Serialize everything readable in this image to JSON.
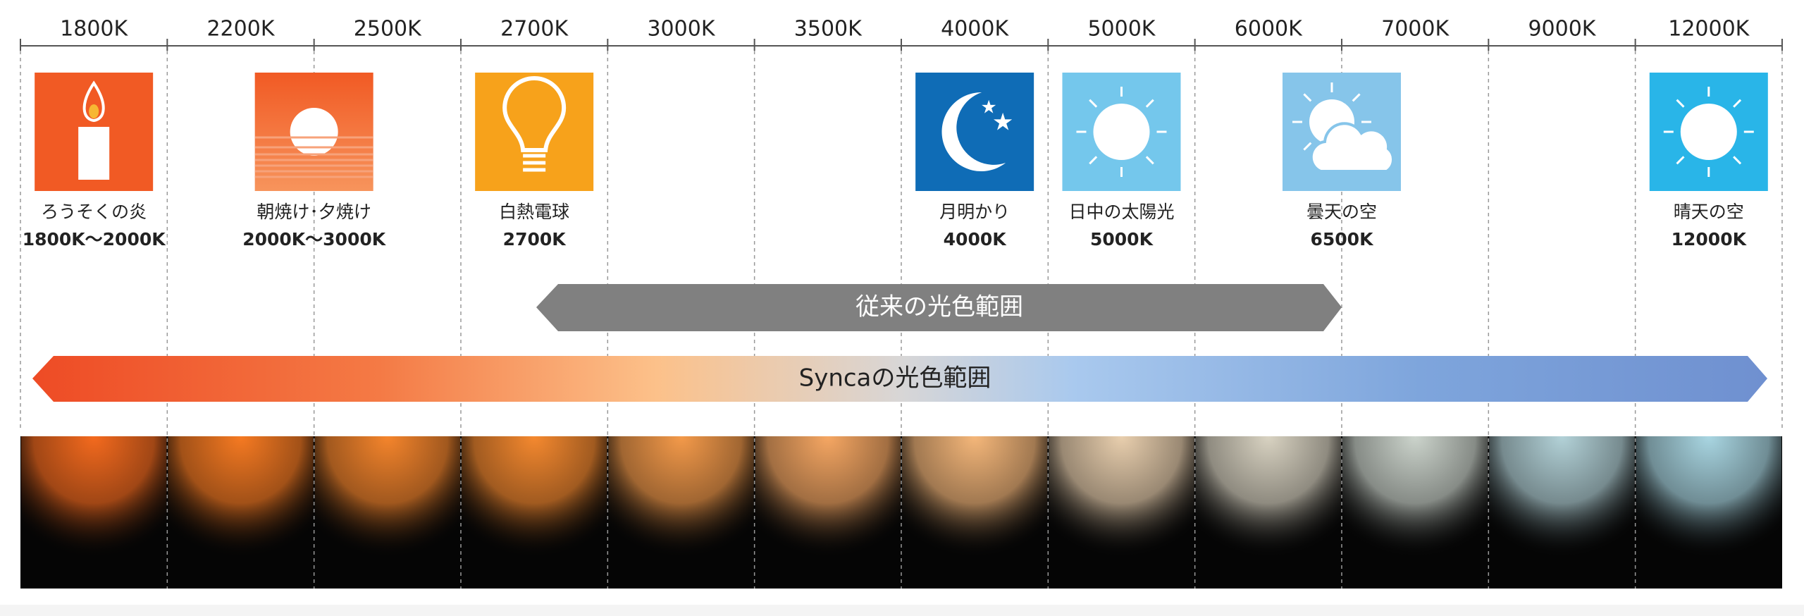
{
  "scale": [
    "1800K",
    "2200K",
    "2500K",
    "2700K",
    "3000K",
    "3500K",
    "4000K",
    "5000K",
    "6000K",
    "7000K",
    "9000K",
    "12000K"
  ],
  "items": [
    {
      "name": "ろうそくの炎",
      "temp": "1800K〜2000K"
    },
    {
      "name": "朝焼け･夕焼け",
      "temp": "2000K〜3000K"
    },
    {
      "name": "白熱電球",
      "temp": "2700K"
    },
    {
      "name": "月明かり",
      "temp": "4000K"
    },
    {
      "name": "日中の太陽光",
      "temp": "5000K"
    },
    {
      "name": "曇天の空",
      "temp": "6500K"
    },
    {
      "name": "晴天の空",
      "temp": "12000K"
    }
  ],
  "ranges": {
    "conventional": "従来の光色範囲",
    "synca": "Syncaの光色範囲"
  }
}
